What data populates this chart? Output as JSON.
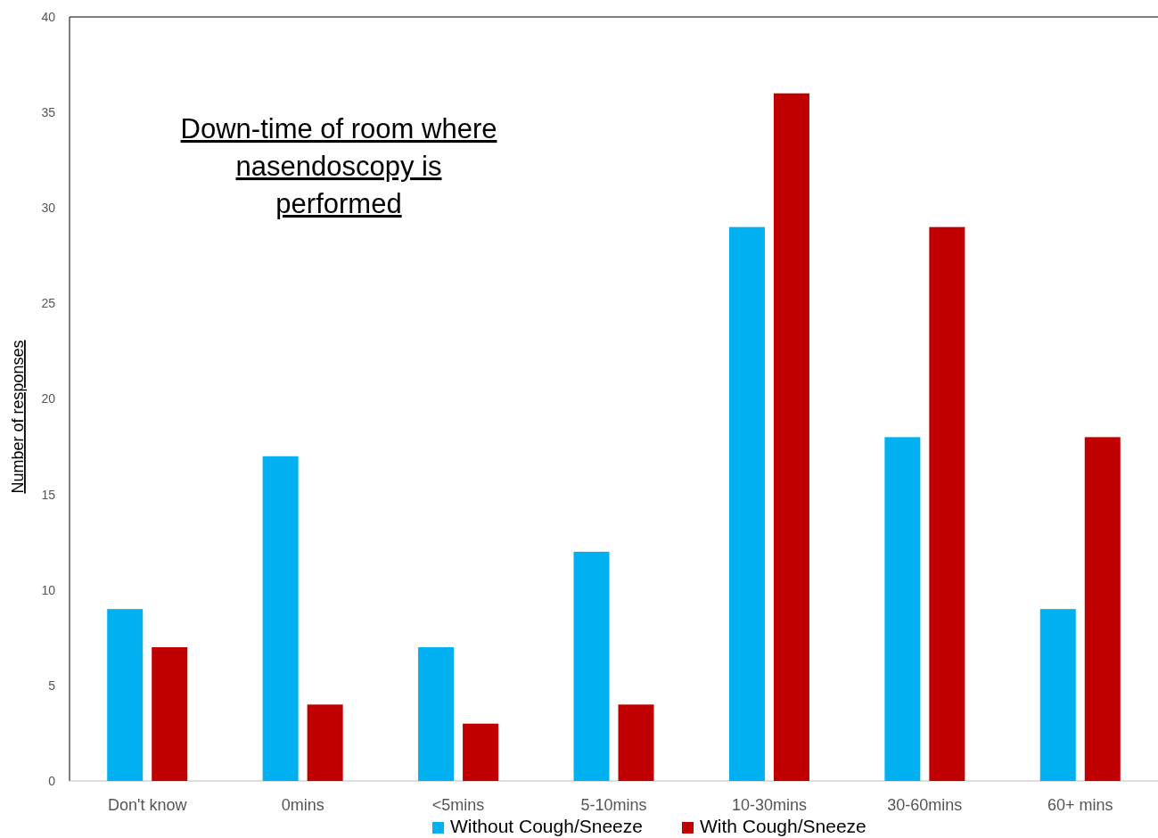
{
  "chart_data": {
    "type": "bar",
    "title": "Down-time of room where nasendoscopy is performed",
    "ylabel": "Number of responses",
    "categories": [
      "Don't know",
      "0mins",
      "<5mins",
      "5-10mins",
      "10-30mins",
      "30-60mins",
      "60+ mins"
    ],
    "series": [
      {
        "name": "Without Cough/Sneeze",
        "color": "#00b0f0",
        "values": [
          9,
          17,
          7,
          12,
          29,
          18,
          9
        ]
      },
      {
        "name": "With Cough/Sneeze",
        "color": "#c00000",
        "values": [
          7,
          4,
          3,
          4,
          36,
          29,
          18
        ]
      }
    ],
    "ylim": [
      0,
      40
    ],
    "yticks": [
      0,
      5,
      10,
      15,
      20,
      25,
      30,
      35,
      40
    ],
    "grid": false,
    "legend": "bottom"
  }
}
